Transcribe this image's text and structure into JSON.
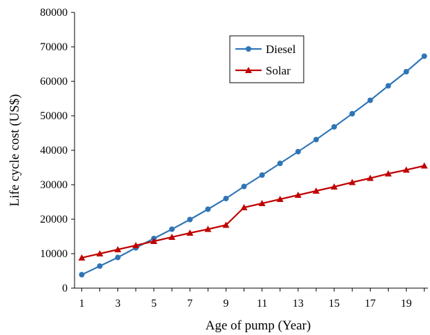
{
  "chart_data": {
    "type": "line",
    "title": "",
    "xlabel": "Age of pump (Year)",
    "ylabel": "Life cycle cost  (US$)",
    "xlim": [
      0.6,
      20.2
    ],
    "ylim": [
      0,
      80000
    ],
    "x_tick_labels": [
      "1",
      "3",
      "5",
      "7",
      "9",
      "11",
      "13",
      "15",
      "17",
      "19"
    ],
    "y_tick_labels": [
      "0",
      "10000",
      "20000",
      "30000",
      "40000",
      "50000",
      "60000",
      "70000",
      "80000"
    ],
    "grid": false,
    "legend_position": "top-center",
    "series": [
      {
        "name": "Diesel",
        "color": "#2e75b6",
        "marker": "circle",
        "x": [
          1,
          2,
          3,
          4,
          5,
          6,
          7,
          8,
          9,
          10,
          11,
          12,
          13,
          14,
          15,
          16,
          17,
          18,
          19,
          20
        ],
        "values": [
          3900,
          6400,
          8900,
          11700,
          14400,
          17100,
          19900,
          22900,
          26000,
          29500,
          32800,
          36200,
          39600,
          43100,
          46800,
          50600,
          54500,
          58700,
          62800,
          67300
        ]
      },
      {
        "name": "Solar",
        "color": "#c00000",
        "marker": "triangle",
        "x": [
          1,
          2,
          3,
          4,
          5,
          6,
          7,
          8,
          9,
          10,
          11,
          12,
          13,
          14,
          15,
          16,
          17,
          18,
          19,
          20
        ],
        "values": [
          8800,
          10000,
          11200,
          12400,
          13600,
          14800,
          16000,
          17100,
          18300,
          23400,
          24600,
          25800,
          27000,
          28200,
          29400,
          30700,
          31900,
          33200,
          34300,
          35500
        ]
      }
    ]
  }
}
